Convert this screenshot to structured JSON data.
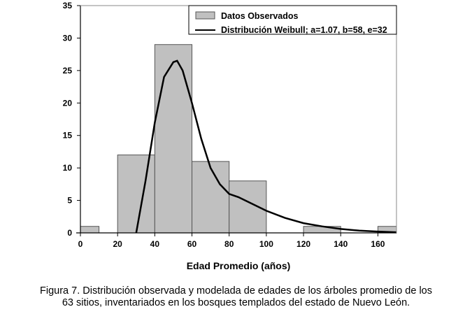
{
  "chart_data": {
    "type": "bar",
    "xlabel": "Edad Promedio (años)",
    "ylabel": "",
    "xlim": [
      0,
      170
    ],
    "ylim": [
      0,
      35
    ],
    "xticks": [
      0,
      20,
      40,
      60,
      80,
      100,
      120,
      140,
      160
    ],
    "yticks": [
      0,
      5,
      10,
      15,
      20,
      25,
      30,
      35
    ],
    "legend_position": "top-right",
    "grid": false,
    "colors": {
      "bars": "#c0c0c0",
      "bar_edge": "#555555",
      "curve": "#000000"
    },
    "series": [
      {
        "name": "Datos Observados",
        "type": "histogram",
        "bins": [
          [
            0,
            10
          ],
          [
            20,
            40
          ],
          [
            40,
            60
          ],
          [
            60,
            80
          ],
          [
            80,
            100
          ],
          [
            120,
            140
          ],
          [
            160,
            170
          ]
        ],
        "values": [
          1,
          12,
          29,
          11,
          8,
          1,
          1
        ]
      },
      {
        "name": "Distribución Weibull; a=1.07, b=58, e=32",
        "type": "line",
        "x": [
          30,
          35,
          40,
          45,
          50,
          52,
          55,
          60,
          65,
          70,
          75,
          80,
          85,
          90,
          100,
          110,
          120,
          130,
          140,
          150,
          160,
          170
        ],
        "y": [
          0,
          8,
          17,
          24,
          26.3,
          26.5,
          25,
          20,
          14.5,
          10,
          7.5,
          6,
          5.5,
          4.8,
          3.4,
          2.3,
          1.5,
          1.0,
          0.6,
          0.35,
          0.2,
          0.1
        ]
      }
    ]
  },
  "caption": {
    "line1": "Figura 7. Distribución observada y modelada de edades de los árboles promedio de los",
    "line2": "63 sitios, inventariados en los bosques templados del estado de Nuevo León."
  }
}
